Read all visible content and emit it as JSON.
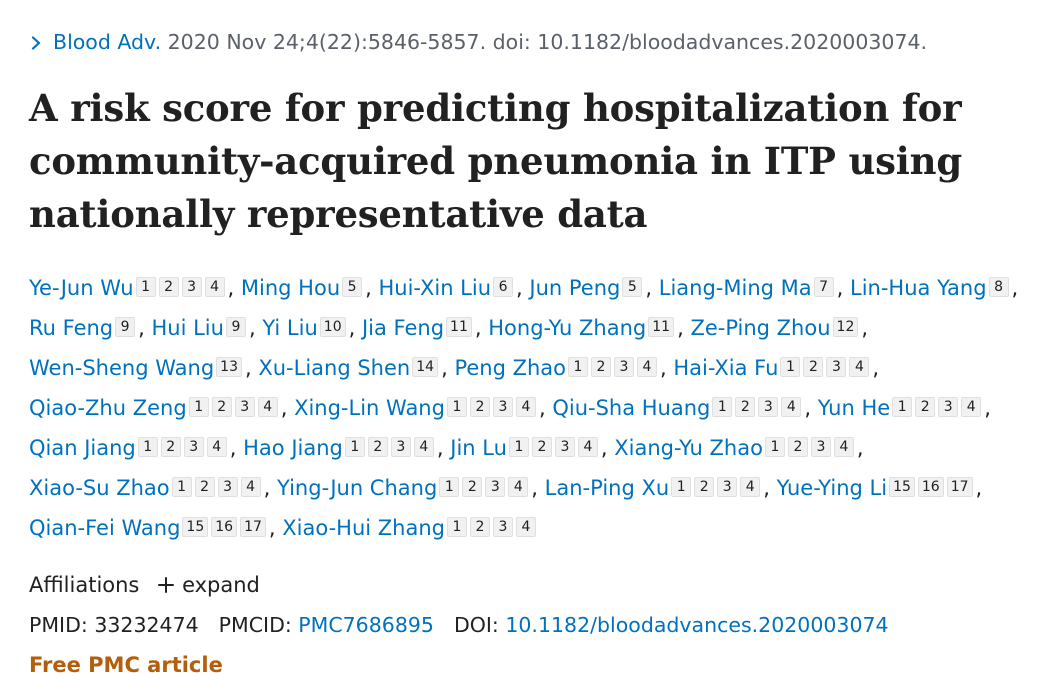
{
  "citation": {
    "journal": "Blood Adv.",
    "details": " 2020 Nov 24;4(22):5846-5857. doi: 10.1182/bloodadvances.2020003074."
  },
  "title": "A risk score for predicting hospitalization for community-acquired pneumonia in ITP using nationally representative data",
  "authors": [
    {
      "name": "Ye-Jun Wu",
      "affs": [
        "1",
        "2",
        "3",
        "4"
      ]
    },
    {
      "name": "Ming Hou",
      "affs": [
        "5"
      ]
    },
    {
      "name": "Hui-Xin Liu",
      "affs": [
        "6"
      ]
    },
    {
      "name": "Jun Peng",
      "affs": [
        "5"
      ]
    },
    {
      "name": "Liang-Ming Ma",
      "affs": [
        "7"
      ]
    },
    {
      "name": "Lin-Hua Yang",
      "affs": [
        "8"
      ]
    },
    {
      "name": "Ru Feng",
      "affs": [
        "9"
      ]
    },
    {
      "name": "Hui Liu",
      "affs": [
        "9"
      ]
    },
    {
      "name": "Yi Liu",
      "affs": [
        "10"
      ]
    },
    {
      "name": "Jia Feng",
      "affs": [
        "11"
      ]
    },
    {
      "name": "Hong-Yu Zhang",
      "affs": [
        "11"
      ]
    },
    {
      "name": "Ze-Ping Zhou",
      "affs": [
        "12"
      ]
    },
    {
      "name": "Wen-Sheng Wang",
      "affs": [
        "13"
      ]
    },
    {
      "name": "Xu-Liang Shen",
      "affs": [
        "14"
      ]
    },
    {
      "name": "Peng Zhao",
      "affs": [
        "1",
        "2",
        "3",
        "4"
      ]
    },
    {
      "name": "Hai-Xia Fu",
      "affs": [
        "1",
        "2",
        "3",
        "4"
      ]
    },
    {
      "name": "Qiao-Zhu Zeng",
      "affs": [
        "1",
        "2",
        "3",
        "4"
      ]
    },
    {
      "name": "Xing-Lin Wang",
      "affs": [
        "1",
        "2",
        "3",
        "4"
      ]
    },
    {
      "name": "Qiu-Sha Huang",
      "affs": [
        "1",
        "2",
        "3",
        "4"
      ]
    },
    {
      "name": "Yun He",
      "affs": [
        "1",
        "2",
        "3",
        "4"
      ]
    },
    {
      "name": "Qian Jiang",
      "affs": [
        "1",
        "2",
        "3",
        "4"
      ]
    },
    {
      "name": "Hao Jiang",
      "affs": [
        "1",
        "2",
        "3",
        "4"
      ]
    },
    {
      "name": "Jin Lu",
      "affs": [
        "1",
        "2",
        "3",
        "4"
      ]
    },
    {
      "name": "Xiang-Yu Zhao",
      "affs": [
        "1",
        "2",
        "3",
        "4"
      ]
    },
    {
      "name": "Xiao-Su Zhao",
      "affs": [
        "1",
        "2",
        "3",
        "4"
      ]
    },
    {
      "name": "Ying-Jun Chang",
      "affs": [
        "1",
        "2",
        "3",
        "4"
      ]
    },
    {
      "name": "Lan-Ping Xu",
      "affs": [
        "1",
        "2",
        "3",
        "4"
      ]
    },
    {
      "name": "Yue-Ying Li",
      "affs": [
        "15",
        "16",
        "17"
      ]
    },
    {
      "name": "Qian-Fei Wang",
      "affs": [
        "15",
        "16",
        "17"
      ]
    },
    {
      "name": "Xiao-Hui Zhang",
      "affs": [
        "1",
        "2",
        "3",
        "4"
      ]
    }
  ],
  "author_line_breaks_after": [
    5,
    11,
    15,
    19,
    23,
    27
  ],
  "affiliations": {
    "label": "Affiliations",
    "expand_label": "expand"
  },
  "ids": {
    "pmid_label": "PMID: ",
    "pmid": "33232474",
    "pmcid_label": "PMCID: ",
    "pmcid": "PMC7686895",
    "doi_label": "DOI: ",
    "doi": "10.1182/bloodadvances.2020003074"
  },
  "free_label": "Free PMC article",
  "colors": {
    "link": "#0071bc",
    "text": "#212121",
    "free": "#b35e0b"
  },
  "icons": [
    "chevron-right-icon",
    "plus-icon"
  ]
}
